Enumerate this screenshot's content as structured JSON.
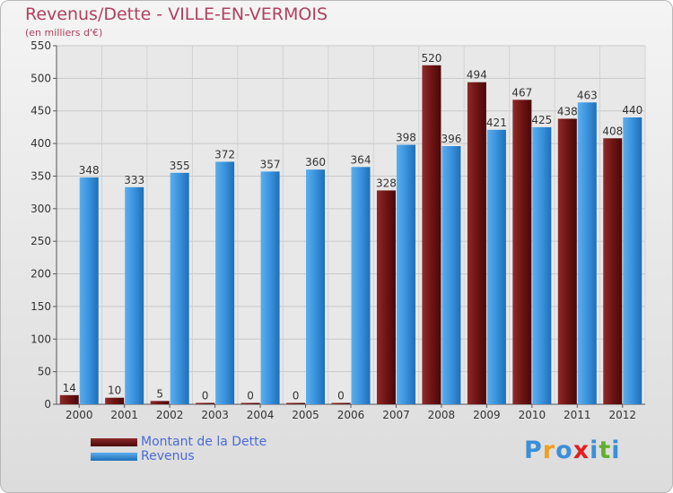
{
  "chart_data": {
    "type": "bar",
    "title": "Revenus/Dette - VILLE-EN-VERMOIS",
    "subtitle": "(en milliers d'€)",
    "categories": [
      "2000",
      "2001",
      "2002",
      "2003",
      "2004",
      "2005",
      "2006",
      "2007",
      "2008",
      "2009",
      "2010",
      "2011",
      "2012"
    ],
    "series": [
      {
        "name": "Montant de la Dette",
        "color": "#6e1a1a",
        "values": [
          14,
          10,
          5,
          0,
          0,
          0,
          0,
          328,
          520,
          494,
          467,
          438,
          408
        ]
      },
      {
        "name": "Revenus",
        "color": "#3a8fd8",
        "values": [
          348,
          333,
          355,
          372,
          357,
          360,
          364,
          398,
          396,
          421,
          425,
          463,
          440
        ]
      }
    ],
    "ylim": [
      0,
      550
    ],
    "yticks": [
      0,
      50,
      100,
      150,
      200,
      250,
      300,
      350,
      400,
      450,
      500,
      550
    ],
    "grid": true,
    "legend": "bottom-left"
  },
  "logo": {
    "letters": [
      "P",
      "r",
      "o",
      "x",
      "i",
      "t",
      "i"
    ],
    "colors": [
      "#3a8fd8",
      "#f0a020",
      "#3a8fd8",
      "#e02020",
      "#3a8fd8",
      "#60b030",
      "#3a8fd8"
    ]
  }
}
